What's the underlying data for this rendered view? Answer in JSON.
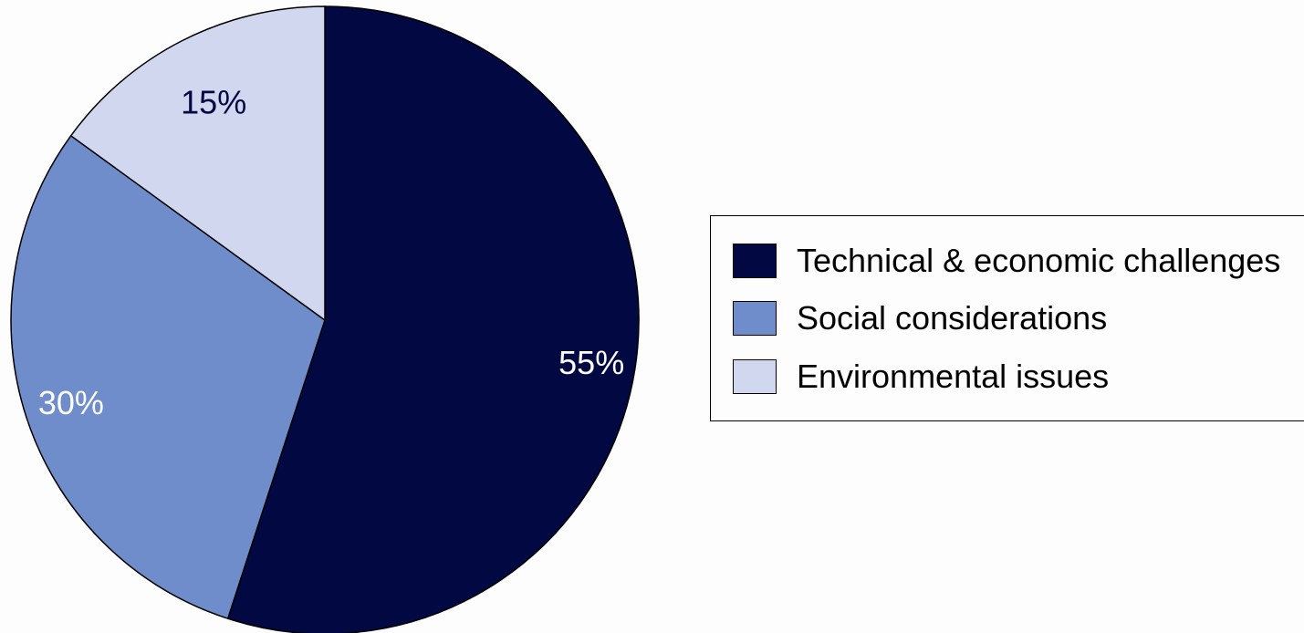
{
  "chart_data": {
    "type": "pie",
    "categories": [
      "Technical & economic challenges",
      "Social considerations",
      "Environmental issues"
    ],
    "values": [
      55,
      30,
      15
    ],
    "labels": [
      "55%",
      "30%",
      "15%"
    ],
    "colors": [
      "#020841",
      "#6f8ccb",
      "#d0d7ee"
    ],
    "label_colors": [
      "#ffffff",
      "#ffffff",
      "#020841"
    ],
    "start_angle_deg": 0,
    "direction": "clockwise",
    "legend_position": "right"
  },
  "legend": {
    "items": [
      {
        "label": "Technical & economic challenges",
        "color": "#020841"
      },
      {
        "label": "Social considerations",
        "color": "#6f8ccb"
      },
      {
        "label": "Environmental issues",
        "color": "#d0d7ee"
      }
    ]
  }
}
